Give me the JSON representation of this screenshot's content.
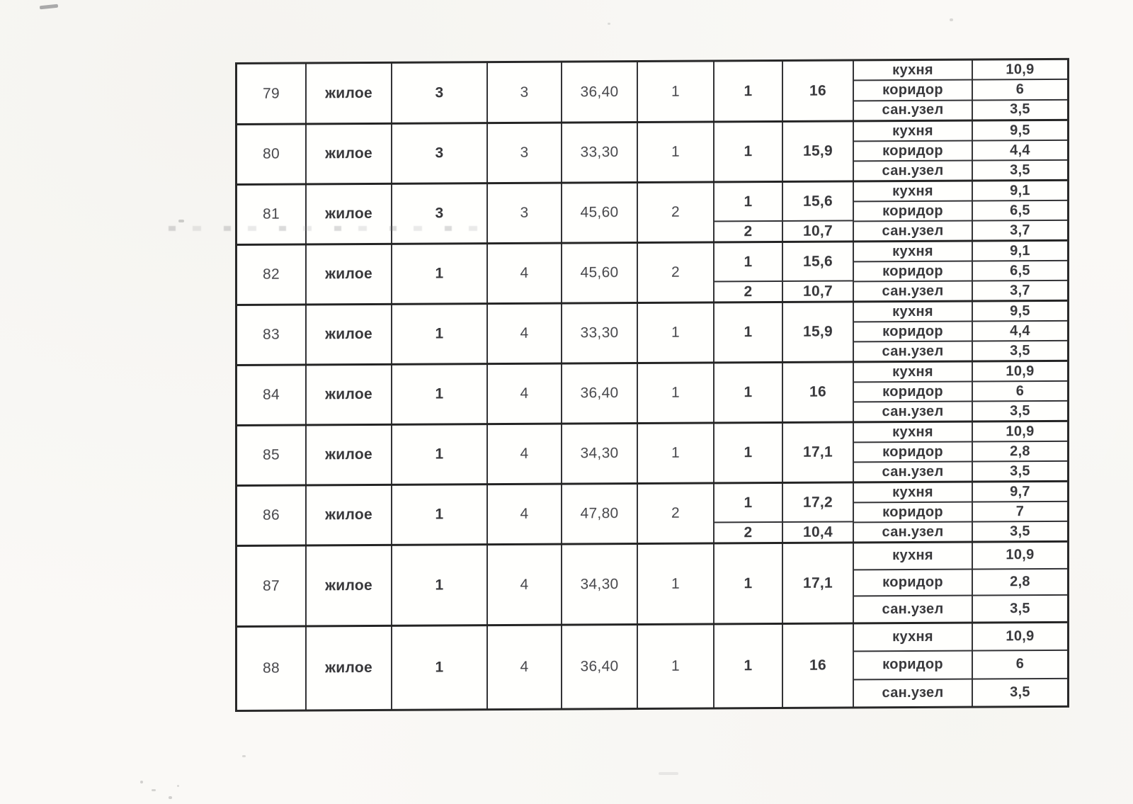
{
  "table": {
    "rows": [
      {
        "num": "79",
        "type": "жилое",
        "col3": "3",
        "col4": "3",
        "total_area": "36,40",
        "room_count": "1",
        "rooms": [
          {
            "no": "1",
            "area": "16"
          }
        ],
        "aux_rooms": [
          {
            "name": "кухня",
            "area": "10,9"
          },
          {
            "name": "коридор",
            "area": "6"
          },
          {
            "name": "сан.узел",
            "area": "3,5"
          }
        ]
      },
      {
        "num": "80",
        "type": "жилое",
        "col3": "3",
        "col4": "3",
        "total_area": "33,30",
        "room_count": "1",
        "rooms": [
          {
            "no": "1",
            "area": "15,9"
          }
        ],
        "aux_rooms": [
          {
            "name": "кухня",
            "area": "9,5"
          },
          {
            "name": "коридор",
            "area": "4,4"
          },
          {
            "name": "сан.узел",
            "area": "3,5"
          }
        ]
      },
      {
        "num": "81",
        "type": "жилое",
        "col3": "3",
        "col4": "3",
        "total_area": "45,60",
        "room_count": "2",
        "rooms": [
          {
            "no": "1",
            "area": "15,6"
          },
          {
            "no": "2",
            "area": "10,7"
          }
        ],
        "aux_rooms": [
          {
            "name": "кухня",
            "area": "9,1"
          },
          {
            "name": "коридор",
            "area": "6,5"
          },
          {
            "name": "сан.узел",
            "area": "3,7"
          }
        ]
      },
      {
        "num": "82",
        "type": "жилое",
        "col3": "1",
        "col4": "4",
        "total_area": "45,60",
        "room_count": "2",
        "rooms": [
          {
            "no": "1",
            "area": "15,6"
          },
          {
            "no": "2",
            "area": "10,7"
          }
        ],
        "aux_rooms": [
          {
            "name": "кухня",
            "area": "9,1"
          },
          {
            "name": "коридор",
            "area": "6,5"
          },
          {
            "name": "сан.узел",
            "area": "3,7"
          }
        ]
      },
      {
        "num": "83",
        "type": "жилое",
        "col3": "1",
        "col4": "4",
        "total_area": "33,30",
        "room_count": "1",
        "rooms": [
          {
            "no": "1",
            "area": "15,9"
          }
        ],
        "aux_rooms": [
          {
            "name": "кухня",
            "area": "9,5"
          },
          {
            "name": "коридор",
            "area": "4,4"
          },
          {
            "name": "сан.узел",
            "area": "3,5"
          }
        ]
      },
      {
        "num": "84",
        "type": "жилое",
        "col3": "1",
        "col4": "4",
        "total_area": "36,40",
        "room_count": "1",
        "rooms": [
          {
            "no": "1",
            "area": "16"
          }
        ],
        "aux_rooms": [
          {
            "name": "кухня",
            "area": "10,9"
          },
          {
            "name": "коридор",
            "area": "6"
          },
          {
            "name": "сан.узел",
            "area": "3,5"
          }
        ]
      },
      {
        "num": "85",
        "type": "жилое",
        "col3": "1",
        "col4": "4",
        "total_area": "34,30",
        "room_count": "1",
        "rooms": [
          {
            "no": "1",
            "area": "17,1"
          }
        ],
        "aux_rooms": [
          {
            "name": "кухня",
            "area": "10,9"
          },
          {
            "name": "коридор",
            "area": "2,8"
          },
          {
            "name": "сан.узел",
            "area": "3,5"
          }
        ]
      },
      {
        "num": "86",
        "type": "жилое",
        "col3": "1",
        "col4": "4",
        "total_area": "47,80",
        "room_count": "2",
        "rooms": [
          {
            "no": "1",
            "area": "17,2"
          },
          {
            "no": "2",
            "area": "10,4"
          }
        ],
        "aux_rooms": [
          {
            "name": "кухня",
            "area": "9,7"
          },
          {
            "name": "коридор",
            "area": "7"
          },
          {
            "name": "сан.узел",
            "area": "3,5"
          }
        ]
      },
      {
        "num": "87",
        "type": "жилое",
        "col3": "1",
        "col4": "4",
        "total_area": "34,30",
        "room_count": "1",
        "rooms": [
          {
            "no": "1",
            "area": "17,1"
          }
        ],
        "aux_rooms": [
          {
            "name": "кухня",
            "area": "10,9"
          },
          {
            "name": "коридор",
            "area": "2,8"
          },
          {
            "name": "сан.узел",
            "area": "3,5"
          }
        ]
      },
      {
        "num": "88",
        "type": "жилое",
        "col3": "1",
        "col4": "4",
        "total_area": "36,40",
        "room_count": "1",
        "rooms": [
          {
            "no": "1",
            "area": "16"
          }
        ],
        "aux_rooms": [
          {
            "name": "кухня",
            "area": "10,9"
          },
          {
            "name": "коридор",
            "area": "6"
          },
          {
            "name": "сан.узел",
            "area": "3,5"
          }
        ]
      }
    ]
  },
  "colors": {
    "paper": "#faf9f6",
    "table_background": "#fdfdfb",
    "border_main": "#262626",
    "border_sub": "#343436",
    "text_regular": "#48484c",
    "text_bold": "#39393c"
  }
}
